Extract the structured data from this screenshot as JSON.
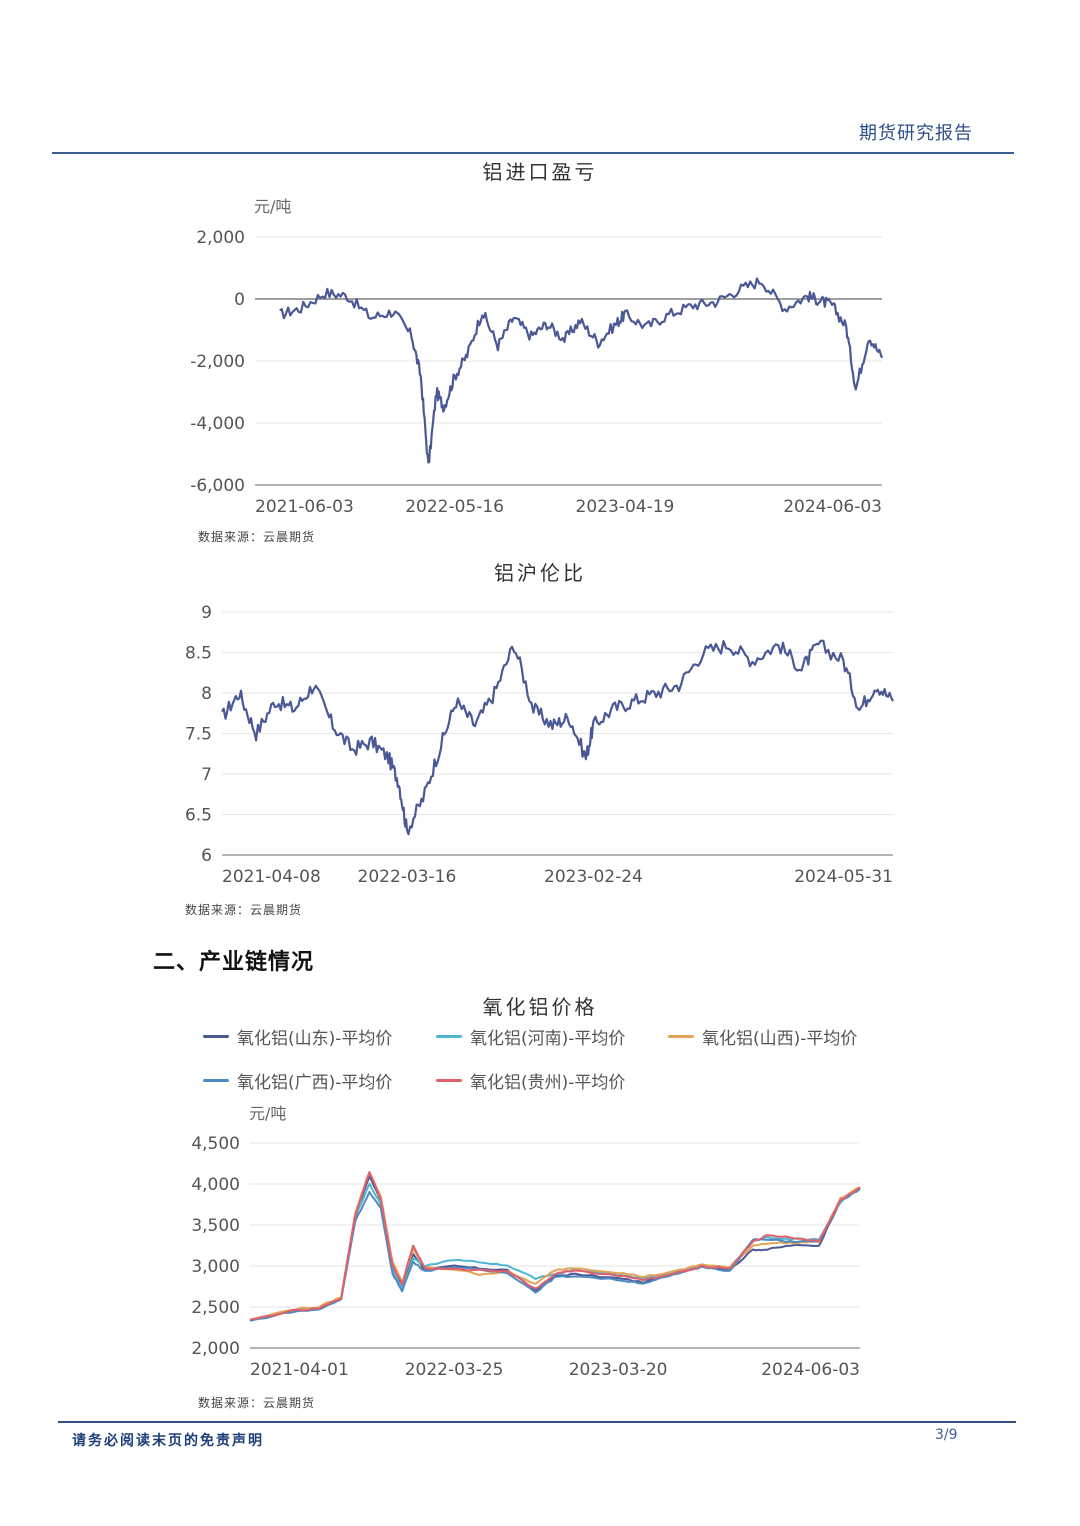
{
  "header": {
    "report_label": "期货研究报告"
  },
  "section_heading": "二、产业链情况",
  "footer": {
    "disclaimer": "请务必阅读末页的免责声明",
    "page": "3/9"
  },
  "colors": {
    "navy": "#4a5996",
    "cyan": "#4fb7d1",
    "orange": "#e3a457",
    "blue": "#4d8ac0",
    "red": "#e0606e"
  },
  "chart_data": [
    {
      "type": "line",
      "title": "铝进口盈亏",
      "ylabel": "元/吨",
      "ylim": [
        -6000,
        2000
      ],
      "yticks": [
        "2,000",
        "0",
        "-2,000",
        "-4,000",
        "-6,000"
      ],
      "ytick_values": [
        2000,
        0,
        -2000,
        -4000,
        -6000
      ],
      "xticks": [
        "2021-06-03",
        "2022-05-16",
        "2023-04-19",
        "2024-06-03"
      ],
      "source": "数据来源：云晨期货",
      "series": [
        {
          "color": "#4a5996",
          "x": [
            "2021-06-03",
            "2021-07-15",
            "2021-09-01",
            "2021-10-15",
            "2021-12-01",
            "2022-01-15",
            "2022-02-20",
            "2022-03-10",
            "2022-03-25",
            "2022-04-10",
            "2022-04-25",
            "2022-05-16",
            "2022-06-10",
            "2022-07-10",
            "2022-08-10",
            "2022-09-10",
            "2022-10-15",
            "2022-11-15",
            "2022-12-20",
            "2023-01-20",
            "2023-02-25",
            "2023-04-01",
            "2023-04-19",
            "2023-06-01",
            "2023-07-15",
            "2023-09-01",
            "2023-10-15",
            "2023-12-01",
            "2024-01-15",
            "2024-03-01",
            "2024-04-15",
            "2024-05-10",
            "2024-06-03",
            "2024-07-01",
            "2024-07-20",
            "2024-08-15",
            "2024-09-10"
          ],
          "values": [
            -500,
            -300,
            200,
            100,
            -600,
            -400,
            -1200,
            -2500,
            -5400,
            -3000,
            -3500,
            -2500,
            -1800,
            -400,
            -1500,
            -600,
            -1200,
            -800,
            -1300,
            -700,
            -1400,
            -800,
            -500,
            -900,
            -500,
            -200,
            -100,
            300,
            600,
            -300,
            100,
            -50,
            -200,
            -900,
            -2900,
            -1200,
            -1900
          ]
        }
      ]
    },
    {
      "type": "line",
      "title": "铝沪伦比",
      "ylim": [
        6,
        9
      ],
      "yticks": [
        "9",
        "8.5",
        "8",
        "7.5",
        "7",
        "6.5",
        "6"
      ],
      "ytick_values": [
        9,
        8.5,
        8,
        7.5,
        7,
        6.5,
        6
      ],
      "xticks": [
        "2021-04-08",
        "2022-03-16",
        "2023-02-24",
        "2024-05-31"
      ],
      "source": "数据来源：云晨期货",
      "series": [
        {
          "color": "#4a5996",
          "x": [
            "2021-04-08",
            "2021-05-10",
            "2021-06-10",
            "2021-07-15",
            "2021-08-20",
            "2021-09-25",
            "2021-10-30",
            "2021-12-05",
            "2022-01-10",
            "2022-02-10",
            "2022-03-01",
            "2022-03-16",
            "2022-04-15",
            "2022-05-15",
            "2022-06-15",
            "2022-07-20",
            "2022-08-25",
            "2022-09-30",
            "2022-11-05",
            "2022-12-10",
            "2023-01-10",
            "2023-02-10",
            "2023-02-24",
            "2023-04-01",
            "2023-05-10",
            "2023-06-20",
            "2023-08-01",
            "2023-09-15",
            "2023-11-01",
            "2023-12-15",
            "2024-02-01",
            "2024-03-15",
            "2024-04-15",
            "2024-05-31",
            "2024-06-30",
            "2024-07-31",
            "2024-08-31"
          ],
          "values": [
            7.7,
            8.0,
            7.5,
            7.9,
            7.8,
            8.1,
            7.6,
            7.3,
            7.4,
            7.2,
            6.9,
            6.3,
            6.7,
            7.3,
            7.9,
            7.6,
            8.0,
            8.6,
            7.8,
            7.6,
            7.7,
            7.2,
            7.6,
            7.8,
            7.9,
            8.0,
            8.1,
            8.5,
            8.6,
            8.4,
            8.6,
            8.3,
            8.6,
            8.4,
            7.8,
            8.1,
            7.9
          ]
        }
      ]
    },
    {
      "type": "line",
      "title": "氧化铝价格",
      "ylabel": "元/吨",
      "ylim": [
        2000,
        4500
      ],
      "yticks": [
        "4,500",
        "4,000",
        "3,500",
        "3,000",
        "2,500",
        "2,000"
      ],
      "ytick_values": [
        4500,
        4000,
        3500,
        3000,
        2500,
        2000
      ],
      "xticks": [
        "2021-04-01",
        "2022-03-25",
        "2023-03-20",
        "2024-06-03"
      ],
      "source": "数据来源：云晨期货",
      "x": [
        "2021-01-01",
        "2021-04-01",
        "2021-06-01",
        "2021-07-20",
        "2021-08-20",
        "2021-09-20",
        "2021-10-15",
        "2021-11-10",
        "2021-12-01",
        "2021-12-25",
        "2022-01-20",
        "2022-03-25",
        "2022-05-20",
        "2022-07-20",
        "2022-09-20",
        "2022-11-01",
        "2022-12-15",
        "2023-03-20",
        "2023-05-15",
        "2023-07-20",
        "2023-09-20",
        "2023-11-20",
        "2024-01-10",
        "2024-02-10",
        "2024-04-01",
        "2024-06-03",
        "2024-07-20",
        "2024-09-01"
      ],
      "series": [
        {
          "name": "氧化铝(山东)-平均价",
          "color": "#4a5996",
          "values": [
            2330,
            2450,
            2480,
            2600,
            3600,
            4100,
            3800,
            3000,
            2750,
            3150,
            2950,
            3000,
            2970,
            2950,
            2700,
            2880,
            2900,
            2850,
            2800,
            2900,
            3000,
            2950,
            3200,
            3200,
            3250,
            3250,
            3800,
            3950
          ]
        },
        {
          "name": "氧化铝(河南)-平均价",
          "color": "#4fb7d1",
          "values": [
            2340,
            2460,
            2490,
            2610,
            3600,
            4000,
            3750,
            2950,
            2720,
            3100,
            3000,
            3080,
            3050,
            3000,
            2850,
            2900,
            2950,
            2900,
            2850,
            2920,
            3010,
            2980,
            3300,
            3350,
            3330,
            3330,
            3780,
            3940
          ]
        },
        {
          "name": "氧化铝(山西)-平均价",
          "color": "#e3a457",
          "values": [
            2340,
            2470,
            2500,
            2620,
            3650,
            4150,
            3850,
            3050,
            2800,
            3200,
            2980,
            2960,
            2900,
            2930,
            2780,
            2950,
            2980,
            2920,
            2870,
            2930,
            3020,
            2980,
            3250,
            3280,
            3280,
            3300,
            3820,
            3960
          ]
        },
        {
          "name": "氧化铝(广西)-平均价",
          "color": "#4d8ac0",
          "values": [
            2330,
            2440,
            2470,
            2590,
            3550,
            3900,
            3700,
            2900,
            2700,
            3050,
            2940,
            2990,
            2950,
            2920,
            2680,
            2860,
            2880,
            2830,
            2790,
            2890,
            2990,
            2940,
            3320,
            3320,
            3300,
            3300,
            3790,
            3940
          ]
        },
        {
          "name": "氧化铝(贵州)-平均价",
          "color": "#e0606e",
          "values": [
            2340,
            2450,
            2480,
            2610,
            3620,
            4150,
            3820,
            3000,
            2780,
            3250,
            2970,
            2960,
            2950,
            2940,
            2720,
            2900,
            2950,
            2880,
            2830,
            2900,
            3000,
            2970,
            3300,
            3370,
            3350,
            3300,
            3800,
            3960
          ]
        }
      ]
    }
  ]
}
